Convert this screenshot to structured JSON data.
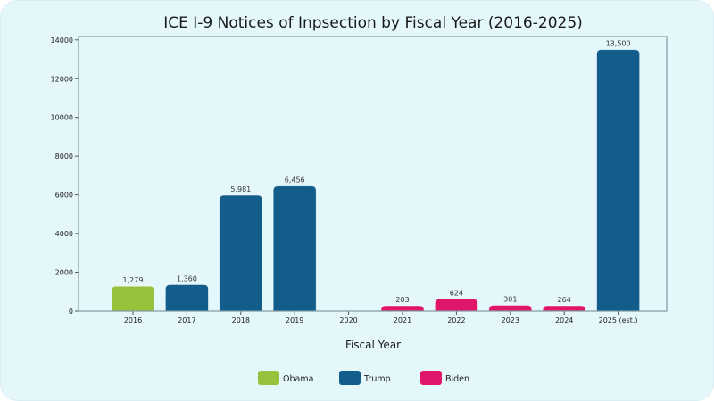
{
  "chart_data": {
    "type": "bar",
    "title": "ICE I-9 Notices of Inpsection by Fiscal Year (2016-2025)",
    "xlabel": "Fiscal Year",
    "ylabel": "",
    "ylim": [
      0,
      14175
    ],
    "yticks": [
      0,
      2000,
      4000,
      6000,
      8000,
      10000,
      12000,
      14000
    ],
    "categories": [
      "2016",
      "2017",
      "2018",
      "2019",
      "2020",
      "2021",
      "2022",
      "2023",
      "2024",
      "2025 (est.)"
    ],
    "values": [
      1279,
      1360,
      5981,
      6456,
      null,
      203,
      624,
      301,
      264,
      13500
    ],
    "data_labels": [
      "1,279",
      "1,360",
      "5,981",
      "6,456",
      "",
      "203",
      "624",
      "301",
      "264",
      "13,500"
    ],
    "groups": [
      "Obama",
      "Trump",
      "Trump",
      "Trump",
      "",
      "Biden",
      "Biden",
      "Biden",
      "Biden",
      "Trump"
    ],
    "legend": {
      "placement": "bottom",
      "entries": [
        {
          "name": "Obama",
          "color": "#97c13c"
        },
        {
          "name": "Trump",
          "color": "#125d8b"
        },
        {
          "name": "Biden",
          "color": "#e0166a"
        }
      ]
    },
    "grid": false
  }
}
